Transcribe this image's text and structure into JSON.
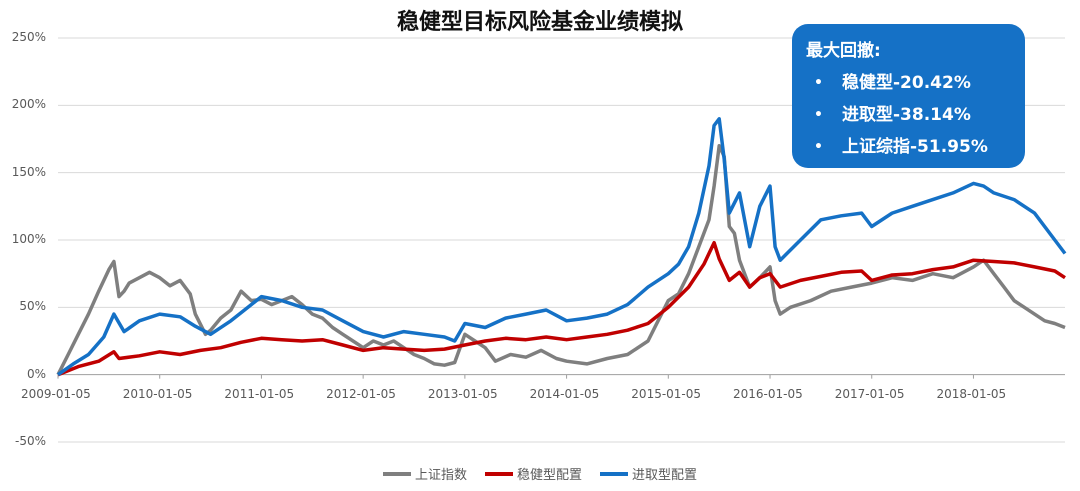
{
  "chart_data": {
    "type": "line",
    "title": "稳健型目标风险基金业绩模拟",
    "xlabel": "",
    "ylabel": "",
    "ylim": [
      -0.5,
      2.5
    ],
    "yticks": [
      "250%",
      "200%",
      "150%",
      "100%",
      "50%",
      "0%",
      "-50%"
    ],
    "x_tick_labels": [
      "2009-01-05",
      "2010-01-05",
      "2011-01-05",
      "2012-01-05",
      "2013-01-05",
      "2014-01-05",
      "2015-01-05",
      "2016-01-05",
      "2017-01-05",
      "2018-01-05"
    ],
    "x_range": [
      2009.0,
      2018.9
    ],
    "grid": true,
    "legend_position": "bottom",
    "series": [
      {
        "name": "上证指数",
        "color": "#7f7f7f",
        "x": [
          2009.0,
          2009.1,
          2009.2,
          2009.3,
          2009.4,
          2009.5,
          2009.55,
          2009.6,
          2009.65,
          2009.7,
          2009.8,
          2009.9,
          2010.0,
          2010.1,
          2010.2,
          2010.3,
          2010.35,
          2010.45,
          2010.5,
          2010.6,
          2010.7,
          2010.8,
          2010.9,
          2011.0,
          2011.1,
          2011.2,
          2011.3,
          2011.4,
          2011.5,
          2011.6,
          2011.7,
          2011.8,
          2011.9,
          2012.0,
          2012.1,
          2012.2,
          2012.3,
          2012.4,
          2012.5,
          2012.6,
          2012.7,
          2012.8,
          2012.9,
          2013.0,
          2013.1,
          2013.2,
          2013.3,
          2013.45,
          2013.6,
          2013.75,
          2013.9,
          2014.0,
          2014.2,
          2014.4,
          2014.6,
          2014.8,
          2014.9,
          2015.0,
          2015.1,
          2015.2,
          2015.3,
          2015.4,
          2015.45,
          2015.5,
          2015.55,
          2015.6,
          2015.65,
          2015.7,
          2015.8,
          2015.9,
          2016.0,
          2016.05,
          2016.1,
          2016.2,
          2016.4,
          2016.6,
          2016.8,
          2017.0,
          2017.2,
          2017.4,
          2017.6,
          2017.8,
          2018.0,
          2018.1,
          2018.2,
          2018.3,
          2018.4,
          2018.5,
          2018.6,
          2018.7,
          2018.8,
          2018.9
        ],
        "y": [
          0.0,
          0.15,
          0.3,
          0.45,
          0.62,
          0.78,
          0.84,
          0.58,
          0.62,
          0.68,
          0.72,
          0.76,
          0.72,
          0.66,
          0.7,
          0.6,
          0.45,
          0.3,
          0.33,
          0.42,
          0.48,
          0.62,
          0.55,
          0.56,
          0.52,
          0.55,
          0.58,
          0.52,
          0.45,
          0.42,
          0.35,
          0.3,
          0.25,
          0.2,
          0.25,
          0.22,
          0.25,
          0.2,
          0.15,
          0.12,
          0.08,
          0.07,
          0.09,
          0.3,
          0.25,
          0.2,
          0.1,
          0.15,
          0.13,
          0.18,
          0.12,
          0.1,
          0.08,
          0.12,
          0.15,
          0.25,
          0.4,
          0.55,
          0.6,
          0.75,
          0.95,
          1.15,
          1.4,
          1.7,
          1.62,
          1.1,
          1.05,
          0.85,
          0.65,
          0.72,
          0.8,
          0.55,
          0.45,
          0.5,
          0.55,
          0.62,
          0.65,
          0.68,
          0.72,
          0.7,
          0.75,
          0.72,
          0.8,
          0.85,
          0.75,
          0.65,
          0.55,
          0.5,
          0.45,
          0.4,
          0.38,
          0.35
        ]
      },
      {
        "name": "稳健型配置",
        "color": "#c00000",
        "x": [
          2009.0,
          2009.2,
          2009.4,
          2009.55,
          2009.6,
          2009.8,
          2010.0,
          2010.2,
          2010.4,
          2010.6,
          2010.8,
          2011.0,
          2011.2,
          2011.4,
          2011.6,
          2011.8,
          2012.0,
          2012.2,
          2012.4,
          2012.6,
          2012.8,
          2013.0,
          2013.2,
          2013.4,
          2013.6,
          2013.8,
          2014.0,
          2014.2,
          2014.4,
          2014.6,
          2014.8,
          2015.0,
          2015.2,
          2015.35,
          2015.45,
          2015.5,
          2015.6,
          2015.7,
          2015.8,
          2015.9,
          2016.0,
          2016.1,
          2016.3,
          2016.5,
          2016.7,
          2016.9,
          2017.0,
          2017.2,
          2017.4,
          2017.6,
          2017.8,
          2018.0,
          2018.2,
          2018.4,
          2018.6,
          2018.8,
          2018.9
        ],
        "y": [
          0.0,
          0.06,
          0.1,
          0.17,
          0.12,
          0.14,
          0.17,
          0.15,
          0.18,
          0.2,
          0.24,
          0.27,
          0.26,
          0.25,
          0.26,
          0.22,
          0.18,
          0.2,
          0.19,
          0.18,
          0.19,
          0.22,
          0.25,
          0.27,
          0.26,
          0.28,
          0.26,
          0.28,
          0.3,
          0.33,
          0.38,
          0.5,
          0.65,
          0.82,
          0.98,
          0.86,
          0.7,
          0.76,
          0.65,
          0.72,
          0.75,
          0.65,
          0.7,
          0.73,
          0.76,
          0.77,
          0.7,
          0.74,
          0.75,
          0.78,
          0.8,
          0.85,
          0.84,
          0.83,
          0.8,
          0.77,
          0.72
        ]
      },
      {
        "name": "进取型配置",
        "color": "#1571c6",
        "x": [
          2009.0,
          2009.15,
          2009.3,
          2009.45,
          2009.55,
          2009.65,
          2009.8,
          2010.0,
          2010.2,
          2010.35,
          2010.5,
          2010.7,
          2010.9,
          2011.0,
          2011.2,
          2011.4,
          2011.6,
          2011.8,
          2012.0,
          2012.2,
          2012.4,
          2012.6,
          2012.8,
          2012.9,
          2013.0,
          2013.2,
          2013.4,
          2013.6,
          2013.8,
          2014.0,
          2014.2,
          2014.4,
          2014.6,
          2014.8,
          2015.0,
          2015.1,
          2015.2,
          2015.3,
          2015.4,
          2015.45,
          2015.5,
          2015.55,
          2015.6,
          2015.7,
          2015.8,
          2015.9,
          2016.0,
          2016.05,
          2016.1,
          2016.3,
          2016.5,
          2016.7,
          2016.9,
          2017.0,
          2017.2,
          2017.4,
          2017.6,
          2017.8,
          2018.0,
          2018.1,
          2018.2,
          2018.4,
          2018.6,
          2018.8,
          2018.9
        ],
        "y": [
          0.0,
          0.08,
          0.15,
          0.28,
          0.45,
          0.32,
          0.4,
          0.45,
          0.43,
          0.36,
          0.3,
          0.4,
          0.52,
          0.58,
          0.55,
          0.5,
          0.48,
          0.4,
          0.32,
          0.28,
          0.32,
          0.3,
          0.28,
          0.25,
          0.38,
          0.35,
          0.42,
          0.45,
          0.48,
          0.4,
          0.42,
          0.45,
          0.52,
          0.65,
          0.75,
          0.82,
          0.95,
          1.2,
          1.55,
          1.85,
          1.9,
          1.6,
          1.2,
          1.35,
          0.95,
          1.25,
          1.4,
          0.95,
          0.85,
          1.0,
          1.15,
          1.18,
          1.2,
          1.1,
          1.2,
          1.25,
          1.3,
          1.35,
          1.42,
          1.4,
          1.35,
          1.3,
          1.2,
          1.0,
          0.9
        ]
      }
    ]
  },
  "drawdown": {
    "title": "最大回撤:",
    "bullet": "•",
    "items": [
      "稳健型-20.42%",
      "进取型-38.14%",
      "上证综指-51.95%"
    ]
  }
}
